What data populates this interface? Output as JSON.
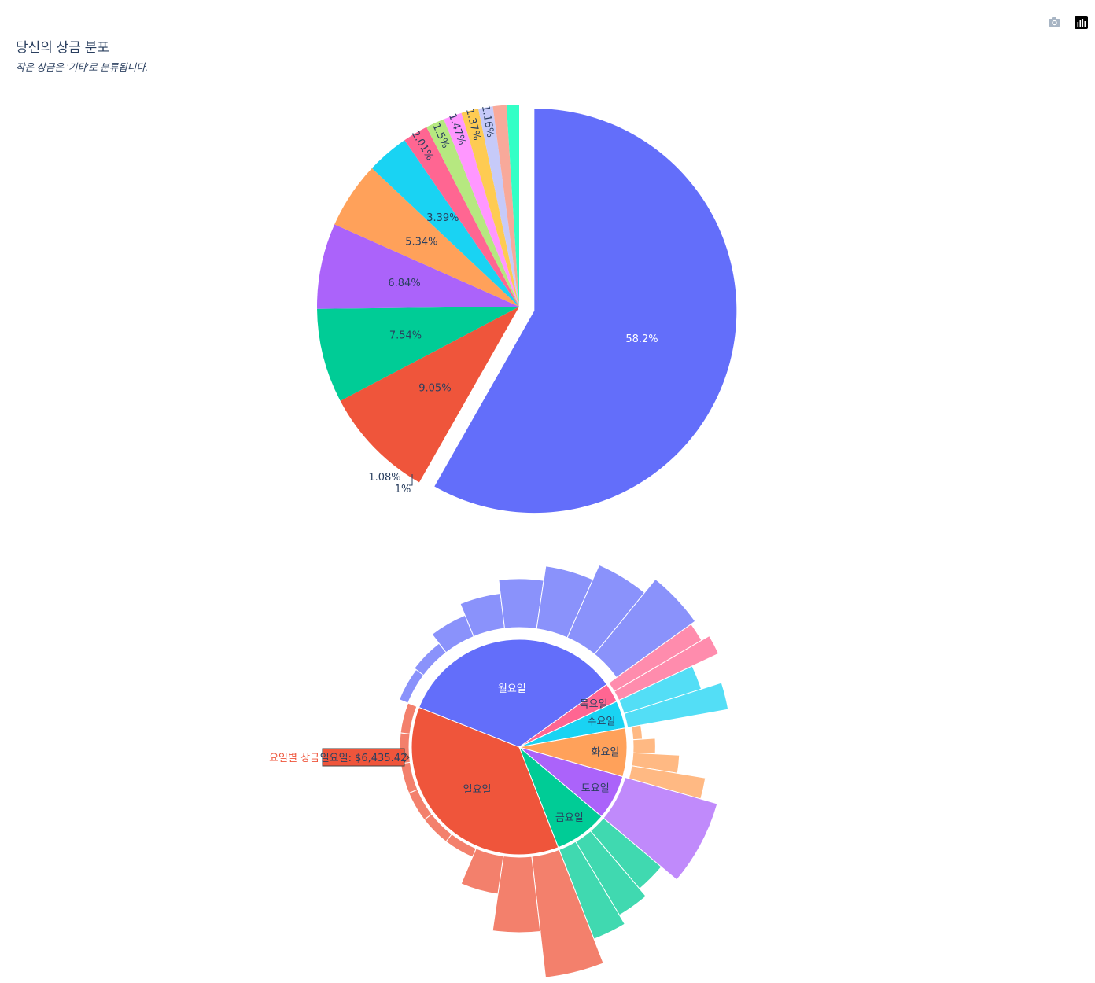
{
  "title": "당신의 상금 분포",
  "subtitle": "작은 상금은 '기타'로 분류됩니다.",
  "modebar": {
    "camera_icon": "camera-icon",
    "plotly_logo": "plotly-logo-icon"
  },
  "chart_data": [
    {
      "type": "pie",
      "values": [
        58.2,
        9.05,
        7.54,
        6.84,
        5.34,
        3.39,
        2.01,
        1.5,
        1.47,
        1.37,
        1.16,
        1.08,
        1.0
      ],
      "labels": [
        "58.2%",
        "9.05%",
        "7.54%",
        "6.84%",
        "5.34%",
        "3.39%",
        "2.01%",
        "1.5%",
        "1.47%",
        "1.37%",
        "1.16%",
        "1.08%",
        "1%"
      ],
      "colors": [
        "#636efa",
        "#ef553b",
        "#00cc96",
        "#ab63fa",
        "#ffa15a",
        "#19d3f3",
        "#ff6692",
        "#b6e880",
        "#ff97ff",
        "#fecb52",
        "#c6caf9",
        "#f8a99a",
        "#33ffc6"
      ],
      "pulled_slice": 0
    },
    {
      "type": "sunburst",
      "days": [
        {
          "name": "월요일",
          "value": 30.5,
          "color": "#636efa"
        },
        {
          "name": "목요일",
          "value": 2.6,
          "color": "#ff6692"
        },
        {
          "name": "수요일",
          "value": 3.7,
          "color": "#19d3f3"
        },
        {
          "name": "화요일",
          "value": 6.5,
          "color": "#ffa15a"
        },
        {
          "name": "토요일",
          "value": 6.0,
          "color": "#ab63fa"
        },
        {
          "name": "금요일",
          "value": 7.1,
          "color": "#00cc96"
        },
        {
          "name": "일요일",
          "value": 33.0,
          "color": "#ef553b"
        }
      ],
      "hover": {
        "prefix": "요일별 상금",
        "text": "일요일: $6,435.42"
      }
    }
  ]
}
